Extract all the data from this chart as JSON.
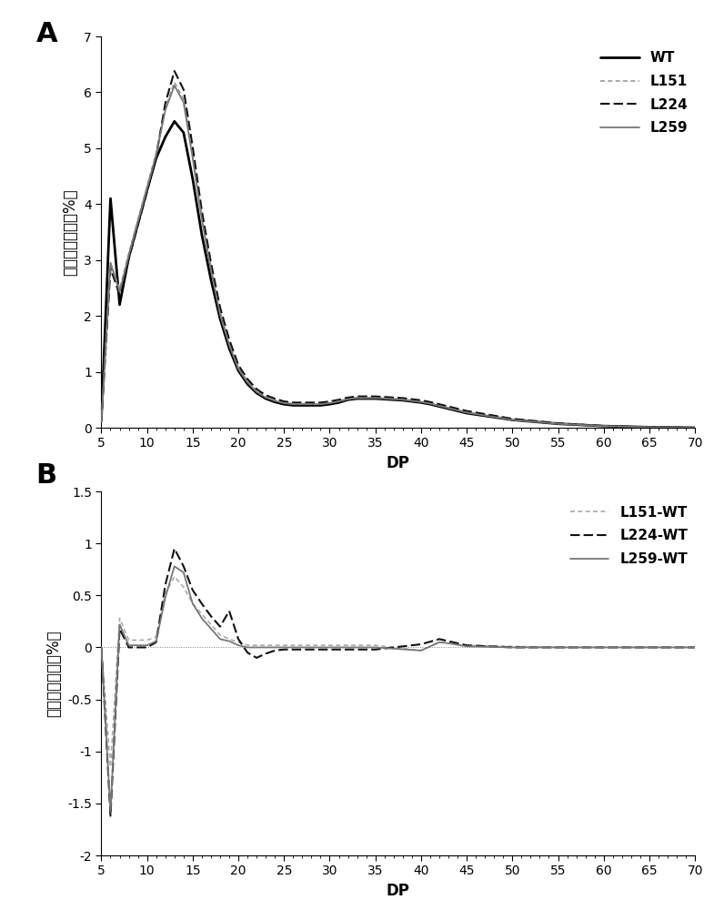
{
  "panel_A": {
    "title": "A",
    "xlabel": "DP",
    "ylabel": "峰面积百分比（%）",
    "xlim": [
      5,
      70
    ],
    "ylim": [
      0,
      7
    ],
    "yticks": [
      0,
      1,
      2,
      3,
      4,
      5,
      6,
      7
    ],
    "xticks": [
      5,
      10,
      15,
      20,
      25,
      30,
      35,
      40,
      45,
      50,
      55,
      60,
      65,
      70
    ],
    "series": {
      "WT": {
        "color": "#000000",
        "linestyle": "solid",
        "linewidth": 2.0,
        "x": [
          5,
          6,
          7,
          8,
          9,
          10,
          11,
          12,
          13,
          14,
          15,
          16,
          17,
          18,
          19,
          20,
          21,
          22,
          23,
          24,
          25,
          26,
          27,
          28,
          29,
          30,
          31,
          32,
          33,
          34,
          35,
          36,
          37,
          38,
          39,
          40,
          41,
          42,
          43,
          44,
          45,
          50,
          55,
          60,
          65,
          70
        ],
        "y": [
          0.15,
          4.1,
          2.2,
          3.05,
          3.65,
          4.25,
          4.82,
          5.2,
          5.48,
          5.28,
          4.45,
          3.45,
          2.65,
          1.95,
          1.42,
          1.02,
          0.78,
          0.62,
          0.52,
          0.46,
          0.42,
          0.4,
          0.4,
          0.4,
          0.4,
          0.42,
          0.45,
          0.5,
          0.52,
          0.52,
          0.52,
          0.51,
          0.5,
          0.49,
          0.47,
          0.45,
          0.42,
          0.38,
          0.34,
          0.3,
          0.26,
          0.14,
          0.07,
          0.03,
          0.01,
          0.0
        ]
      },
      "L151": {
        "color": "#999999",
        "linestyle": "dashed",
        "linewidth": 1.2,
        "dashes": [
          3,
          2,
          3,
          2
        ],
        "x": [
          5,
          6,
          7,
          8,
          9,
          10,
          11,
          12,
          13,
          14,
          15,
          16,
          17,
          18,
          19,
          20,
          21,
          22,
          23,
          24,
          25,
          26,
          27,
          28,
          29,
          30,
          31,
          32,
          33,
          34,
          35,
          36,
          37,
          38,
          39,
          40,
          41,
          42,
          43,
          44,
          45,
          50,
          55,
          60,
          65,
          70
        ],
        "y": [
          0.1,
          2.95,
          2.48,
          3.12,
          3.72,
          4.32,
          4.92,
          5.72,
          6.18,
          5.88,
          4.88,
          3.78,
          2.88,
          2.08,
          1.52,
          1.08,
          0.83,
          0.66,
          0.55,
          0.49,
          0.45,
          0.43,
          0.43,
          0.43,
          0.43,
          0.45,
          0.48,
          0.52,
          0.54,
          0.54,
          0.54,
          0.53,
          0.52,
          0.51,
          0.49,
          0.47,
          0.44,
          0.4,
          0.36,
          0.32,
          0.28,
          0.15,
          0.08,
          0.03,
          0.01,
          0.0
        ]
      },
      "L224": {
        "color": "#111111",
        "linestyle": "dashed",
        "linewidth": 1.5,
        "dashes": [
          5,
          2,
          5,
          2
        ],
        "x": [
          5,
          6,
          7,
          8,
          9,
          10,
          11,
          12,
          13,
          14,
          15,
          16,
          17,
          18,
          19,
          20,
          21,
          22,
          23,
          24,
          25,
          26,
          27,
          28,
          29,
          30,
          31,
          32,
          33,
          34,
          35,
          36,
          37,
          38,
          39,
          40,
          41,
          42,
          43,
          44,
          45,
          50,
          55,
          60,
          65,
          70
        ],
        "y": [
          0.1,
          2.85,
          2.38,
          3.02,
          3.62,
          4.22,
          4.85,
          5.8,
          6.38,
          6.05,
          5.02,
          3.88,
          2.95,
          2.15,
          1.58,
          1.12,
          0.87,
          0.69,
          0.58,
          0.52,
          0.47,
          0.45,
          0.45,
          0.45,
          0.45,
          0.47,
          0.5,
          0.54,
          0.56,
          0.56,
          0.56,
          0.55,
          0.54,
          0.53,
          0.51,
          0.49,
          0.46,
          0.42,
          0.38,
          0.34,
          0.3,
          0.16,
          0.08,
          0.03,
          0.01,
          0.0
        ]
      },
      "L259": {
        "color": "#777777",
        "linestyle": "solid",
        "linewidth": 1.3,
        "x": [
          5,
          6,
          7,
          8,
          9,
          10,
          11,
          12,
          13,
          14,
          15,
          16,
          17,
          18,
          19,
          20,
          21,
          22,
          23,
          24,
          25,
          26,
          27,
          28,
          29,
          30,
          31,
          32,
          33,
          34,
          35,
          36,
          37,
          38,
          39,
          40,
          41,
          42,
          43,
          44,
          45,
          50,
          55,
          60,
          65,
          70
        ],
        "y": [
          0.1,
          2.95,
          2.43,
          3.08,
          3.68,
          4.28,
          4.88,
          5.68,
          6.12,
          5.82,
          4.82,
          3.72,
          2.82,
          2.02,
          1.48,
          1.05,
          0.81,
          0.64,
          0.54,
          0.48,
          0.44,
          0.42,
          0.42,
          0.42,
          0.42,
          0.44,
          0.47,
          0.51,
          0.53,
          0.53,
          0.53,
          0.52,
          0.51,
          0.5,
          0.48,
          0.46,
          0.43,
          0.39,
          0.35,
          0.31,
          0.27,
          0.14,
          0.07,
          0.03,
          0.01,
          0.0
        ]
      }
    }
  },
  "panel_B": {
    "title": "B",
    "xlabel": "DP",
    "ylabel": "峰面积百分比（%）",
    "xlim": [
      5,
      70
    ],
    "ylim": [
      -2,
      1.5
    ],
    "yticks": [
      -2.0,
      -1.5,
      -1.0,
      -0.5,
      0.0,
      0.5,
      1.0,
      1.5
    ],
    "xticks": [
      5,
      10,
      15,
      20,
      25,
      30,
      35,
      40,
      45,
      50,
      55,
      60,
      65,
      70
    ],
    "series": {
      "L151-WT": {
        "color": "#aaaaaa",
        "linestyle": "dashed",
        "linewidth": 1.2,
        "dashes": [
          3,
          2,
          3,
          2
        ],
        "x": [
          5,
          6,
          7,
          8,
          9,
          10,
          11,
          12,
          13,
          14,
          15,
          16,
          17,
          18,
          19,
          20,
          21,
          22,
          23,
          24,
          25,
          26,
          27,
          28,
          29,
          30,
          35,
          40,
          42,
          43,
          45,
          50,
          55,
          60,
          65,
          70
        ],
        "y": [
          0.0,
          -1.15,
          0.28,
          0.07,
          0.07,
          0.07,
          0.1,
          0.52,
          0.68,
          0.58,
          0.42,
          0.32,
          0.22,
          0.12,
          0.08,
          0.05,
          0.02,
          0.02,
          0.02,
          0.02,
          0.02,
          0.02,
          0.02,
          0.02,
          0.02,
          0.02,
          0.02,
          -0.03,
          0.05,
          0.04,
          0.02,
          0.01,
          0.0,
          0.0,
          0.0,
          0.0
        ]
      },
      "L224-WT": {
        "color": "#111111",
        "linestyle": "dashed",
        "linewidth": 1.5,
        "dashes": [
          5,
          2,
          5,
          2
        ],
        "x": [
          5,
          6,
          7,
          8,
          9,
          10,
          11,
          12,
          13,
          14,
          15,
          16,
          17,
          18,
          19,
          20,
          21,
          22,
          23,
          24,
          25,
          26,
          27,
          28,
          29,
          30,
          35,
          40,
          42,
          43,
          45,
          50,
          55,
          60,
          65,
          70
        ],
        "y": [
          0.0,
          -1.62,
          0.18,
          0.0,
          0.0,
          0.0,
          0.05,
          0.6,
          0.95,
          0.78,
          0.55,
          0.42,
          0.3,
          0.2,
          0.35,
          0.08,
          -0.05,
          -0.1,
          -0.06,
          -0.03,
          -0.02,
          -0.02,
          -0.02,
          -0.02,
          -0.02,
          -0.02,
          -0.02,
          0.03,
          0.08,
          0.06,
          0.02,
          0.0,
          0.0,
          0.0,
          0.0,
          0.0
        ]
      },
      "L259-WT": {
        "color": "#777777",
        "linestyle": "solid",
        "linewidth": 1.3,
        "x": [
          5,
          6,
          7,
          8,
          9,
          10,
          11,
          12,
          13,
          14,
          15,
          16,
          17,
          18,
          19,
          20,
          21,
          22,
          23,
          24,
          25,
          26,
          27,
          28,
          29,
          30,
          35,
          40,
          42,
          43,
          45,
          50,
          55,
          60,
          65,
          70
        ],
        "y": [
          0.0,
          -1.58,
          0.22,
          0.02,
          0.02,
          0.02,
          0.06,
          0.48,
          0.78,
          0.72,
          0.42,
          0.28,
          0.18,
          0.08,
          0.06,
          0.02,
          0.0,
          0.0,
          0.0,
          0.0,
          0.0,
          0.0,
          0.0,
          0.0,
          0.0,
          0.0,
          0.0,
          -0.03,
          0.05,
          0.04,
          0.01,
          0.0,
          0.0,
          0.0,
          0.0,
          0.0
        ]
      }
    }
  },
  "background_color": "#ffffff",
  "label_fontsize": 12,
  "tick_fontsize": 10,
  "legend_fontsize": 11,
  "panel_label_fontsize": 22
}
